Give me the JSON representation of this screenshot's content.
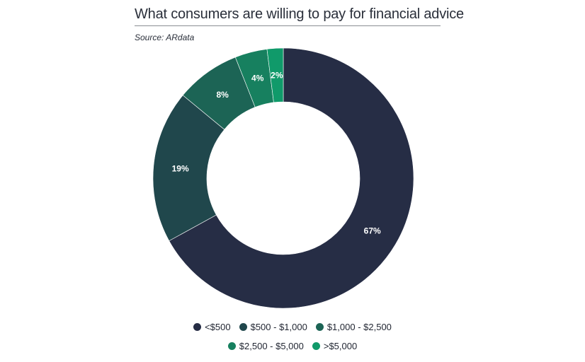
{
  "header": {
    "title": "What consumers are willing to pay for financial advice",
    "source": "Source: ARdata"
  },
  "chart_data": {
    "type": "pie",
    "donut": true,
    "title": "What consumers are willing to pay for financial advice",
    "categories": [
      "<$500",
      "$500 - $1,000",
      "$1,000 - $2,500",
      "$2,500 - $5,000",
      ">$5,000"
    ],
    "values": [
      67,
      19,
      8,
      4,
      2
    ],
    "labels": [
      "67%",
      "19%",
      "8%",
      "4%",
      "2%"
    ],
    "colors": [
      "#262d45",
      "#20474c",
      "#1c6455",
      "#17805f",
      "#109a6a"
    ],
    "legend_position": "bottom"
  }
}
